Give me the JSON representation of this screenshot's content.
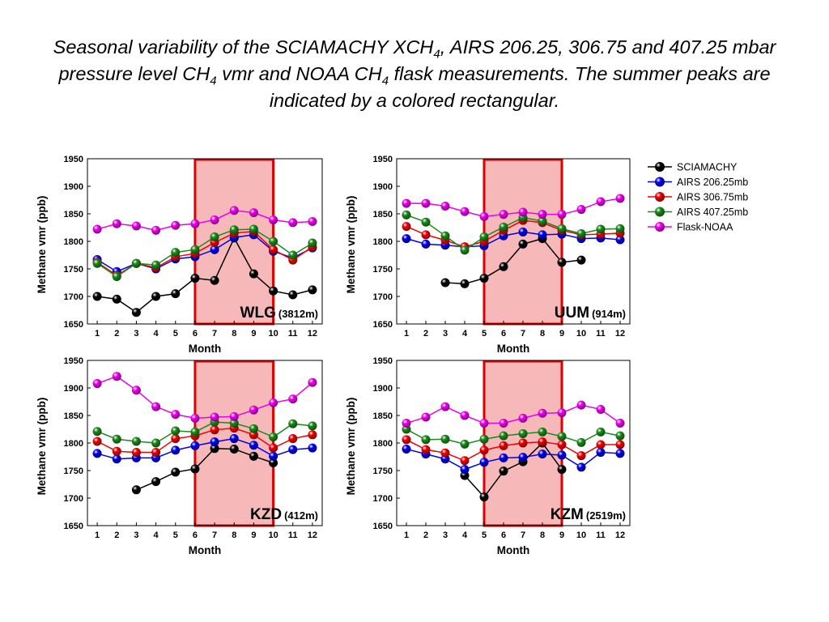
{
  "slide": {
    "title_runs": [
      {
        "text": "Seasonal variability of the SCIAMACHY XCH",
        "sub": false
      },
      {
        "text": "4",
        "sub": true
      },
      {
        "text": ", AIRS 206.25, 306.75 and 407.25 mbar pressure level CH",
        "sub": false
      },
      {
        "text": "4",
        "sub": true
      },
      {
        "text": " vmr and NOAA CH",
        "sub": false
      },
      {
        "text": "4",
        "sub": true
      },
      {
        "text": " flask measurements. The summer peaks are indicated by a colored rectangular.",
        "sub": false
      }
    ]
  },
  "colors": {
    "SCIAMACHY": "#000000",
    "AIRS 206.25mb": "#0000ee",
    "AIRS 306.75mb": "#ee0000",
    "AIRS 407.25mb": "#1a8a1a",
    "Flask-NOAA": "#ee00ee",
    "highlight_fill": "#f6b8b8",
    "highlight_border": "#e00000"
  },
  "legend": {
    "placement": "right",
    "entries": [
      "SCIAMACHY",
      "AIRS 206.25mb",
      "AIRS 306.75mb",
      "AIRS 407.25mb",
      "Flask-NOAA"
    ]
  },
  "chart_data": [
    {
      "type": "line",
      "station": "WLG",
      "altitude": "(3812m)",
      "xlabel": "Month",
      "ylabel": "Methane vmr (ppb)",
      "x": [
        1,
        2,
        3,
        4,
        5,
        6,
        7,
        8,
        9,
        10,
        11,
        12
      ],
      "xlim": [
        0.5,
        12.5
      ],
      "ylim": [
        1650,
        1950
      ],
      "yticks": [
        1650,
        1700,
        1750,
        1800,
        1850,
        1900,
        1950
      ],
      "highlight_months": [
        6,
        10
      ],
      "series": [
        {
          "name": "SCIAMACHY",
          "values": [
            1700,
            1695,
            1671,
            1700,
            1705,
            1733,
            1729,
            1806,
            1741,
            1710,
            1703,
            1712
          ]
        },
        {
          "name": "AIRS 206.25mb",
          "values": [
            1767,
            1745,
            1760,
            1750,
            1768,
            1772,
            1785,
            1807,
            1812,
            1782,
            1770,
            1788
          ]
        },
        {
          "name": "AIRS 306.75mb",
          "values": [
            1762,
            1738,
            1760,
            1752,
            1772,
            1778,
            1798,
            1815,
            1818,
            1785,
            1766,
            1790
          ]
        },
        {
          "name": "AIRS 407.25mb",
          "values": [
            1760,
            1736,
            1760,
            1757,
            1780,
            1785,
            1808,
            1821,
            1822,
            1800,
            1775,
            1797
          ]
        },
        {
          "name": "Flask-NOAA",
          "values": [
            1822,
            1832,
            1828,
            1820,
            1829,
            1832,
            1839,
            1856,
            1852,
            1839,
            1834,
            1836
          ]
        }
      ]
    },
    {
      "type": "line",
      "station": "UUM",
      "altitude": "(914m)",
      "xlabel": "Month",
      "ylabel": "Methane vmr (ppb)",
      "x": [
        1,
        2,
        3,
        4,
        5,
        6,
        7,
        8,
        9,
        10,
        11,
        12
      ],
      "xlim": [
        0.5,
        12.5
      ],
      "ylim": [
        1650,
        1950
      ],
      "yticks": [
        1650,
        1700,
        1750,
        1800,
        1850,
        1900,
        1950
      ],
      "highlight_months": [
        5,
        9
      ],
      "series": [
        {
          "name": "SCIAMACHY",
          "values": [
            null,
            null,
            1725,
            1723,
            1733,
            1754,
            1795,
            1805,
            1762,
            1766,
            null,
            null
          ]
        },
        {
          "name": "AIRS 206.25mb",
          "values": [
            1805,
            1795,
            1793,
            1790,
            1792,
            1810,
            1817,
            1812,
            1813,
            1805,
            1806,
            1803
          ]
        },
        {
          "name": "AIRS 306.75mb",
          "values": [
            1827,
            1812,
            1802,
            1790,
            1800,
            1820,
            1838,
            1834,
            1820,
            1812,
            1813,
            1815
          ]
        },
        {
          "name": "AIRS 407.25mb",
          "values": [
            1848,
            1835,
            1810,
            1784,
            1808,
            1826,
            1843,
            1837,
            1823,
            1814,
            1822,
            1823
          ]
        },
        {
          "name": "Flask-NOAA",
          "values": [
            1869,
            1869,
            1864,
            1854,
            1845,
            1849,
            1853,
            1849,
            1849,
            1858,
            1872,
            1878
          ]
        }
      ]
    },
    {
      "type": "line",
      "station": "KZD",
      "altitude": "(412m)",
      "xlabel": "Month",
      "ylabel": "Methane vmr (ppb)",
      "x": [
        1,
        2,
        3,
        4,
        5,
        6,
        7,
        8,
        9,
        10,
        11,
        12
      ],
      "xlim": [
        0.5,
        12.5
      ],
      "ylim": [
        1650,
        1950
      ],
      "yticks": [
        1650,
        1700,
        1750,
        1800,
        1850,
        1900,
        1950
      ],
      "highlight_months": [
        6,
        10
      ],
      "series": [
        {
          "name": "SCIAMACHY",
          "values": [
            null,
            null,
            1715,
            1730,
            1747,
            1753,
            1790,
            1789,
            1776,
            1764,
            null,
            null
          ]
        },
        {
          "name": "AIRS 206.25mb",
          "values": [
            1781,
            1771,
            1773,
            1773,
            1787,
            1795,
            1802,
            1808,
            1796,
            1776,
            1788,
            1791
          ]
        },
        {
          "name": "AIRS 306.75mb",
          "values": [
            1803,
            1785,
            1783,
            1783,
            1808,
            1813,
            1824,
            1827,
            1815,
            1791,
            1808,
            1815
          ]
        },
        {
          "name": "AIRS 407.25mb",
          "values": [
            1821,
            1807,
            1803,
            1800,
            1822,
            1820,
            1838,
            1836,
            1826,
            1811,
            1835,
            1831
          ]
        },
        {
          "name": "Flask-NOAA",
          "values": [
            1908,
            1921,
            1896,
            1866,
            1852,
            1845,
            1847,
            1848,
            1860,
            1873,
            1880,
            1910
          ]
        }
      ]
    },
    {
      "type": "line",
      "station": "KZM",
      "altitude": "(2519m)",
      "xlabel": "Month",
      "ylabel": "Methane vmr (ppb)",
      "x": [
        1,
        2,
        3,
        4,
        5,
        6,
        7,
        8,
        9,
        10,
        11,
        12
      ],
      "xlim": [
        0.5,
        12.5
      ],
      "ylim": [
        1650,
        1950
      ],
      "yticks": [
        1650,
        1700,
        1750,
        1800,
        1850,
        1900,
        1950
      ],
      "highlight_months": [
        5,
        9
      ],
      "series": [
        {
          "name": "SCIAMACHY",
          "values": [
            null,
            null,
            null,
            1741,
            1702,
            1749,
            1766,
            1800,
            1752,
            null,
            null,
            null
          ]
        },
        {
          "name": "AIRS 206.25mb",
          "values": [
            1789,
            1780,
            1771,
            1752,
            1765,
            1773,
            1774,
            1780,
            1778,
            1756,
            1783,
            1781
          ]
        },
        {
          "name": "AIRS 306.75mb",
          "values": [
            1806,
            1788,
            1782,
            1768,
            1787,
            1795,
            1800,
            1802,
            1797,
            1777,
            1797,
            1797
          ]
        },
        {
          "name": "AIRS 407.25mb",
          "values": [
            1825,
            1806,
            1807,
            1798,
            1807,
            1813,
            1817,
            1820,
            1812,
            1801,
            1820,
            1813
          ]
        },
        {
          "name": "Flask-NOAA",
          "values": [
            1836,
            1847,
            1866,
            1850,
            1836,
            1836,
            1845,
            1854,
            1855,
            1869,
            1861,
            1836
          ]
        }
      ]
    }
  ]
}
